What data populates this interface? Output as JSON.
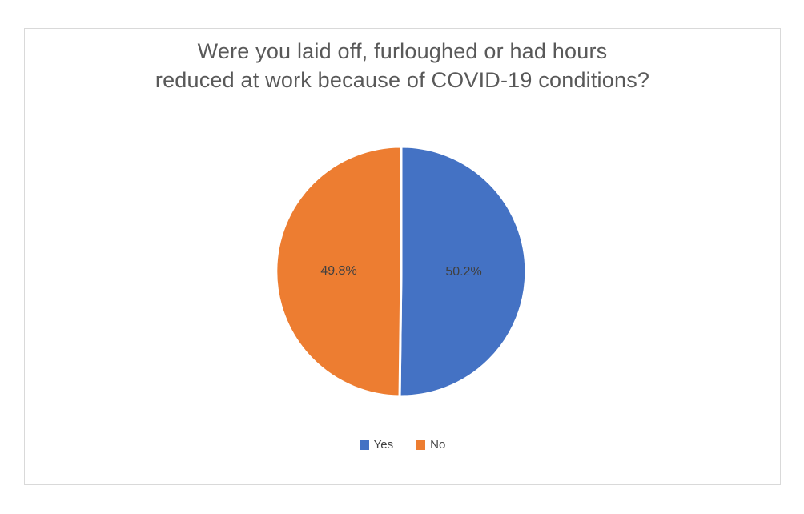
{
  "chart_data": {
    "type": "pie",
    "title": "Were you laid off, furloughed or had hours reduced at work because of COVID-19 conditions?",
    "title_lines": [
      "Were you laid off, furloughed or had hours",
      "reduced at work because of COVID-19 conditions?"
    ],
    "labels": [
      "Yes",
      "No"
    ],
    "values": [
      50.2,
      49.8
    ],
    "data_labels": [
      "50.2%",
      "49.8%"
    ],
    "colors": [
      "#4472C4",
      "#ED7D31"
    ],
    "start_angle_deg": 0,
    "direction": "clockwise",
    "legend_position": "bottom"
  },
  "styles": {
    "background": "#FFFFFF",
    "frame_border_color": "#D9D9D9",
    "title_color": "#595959",
    "data_label_color": "#404040",
    "legend_text_color": "#404040",
    "slice_border_color": "#FFFFFF"
  }
}
